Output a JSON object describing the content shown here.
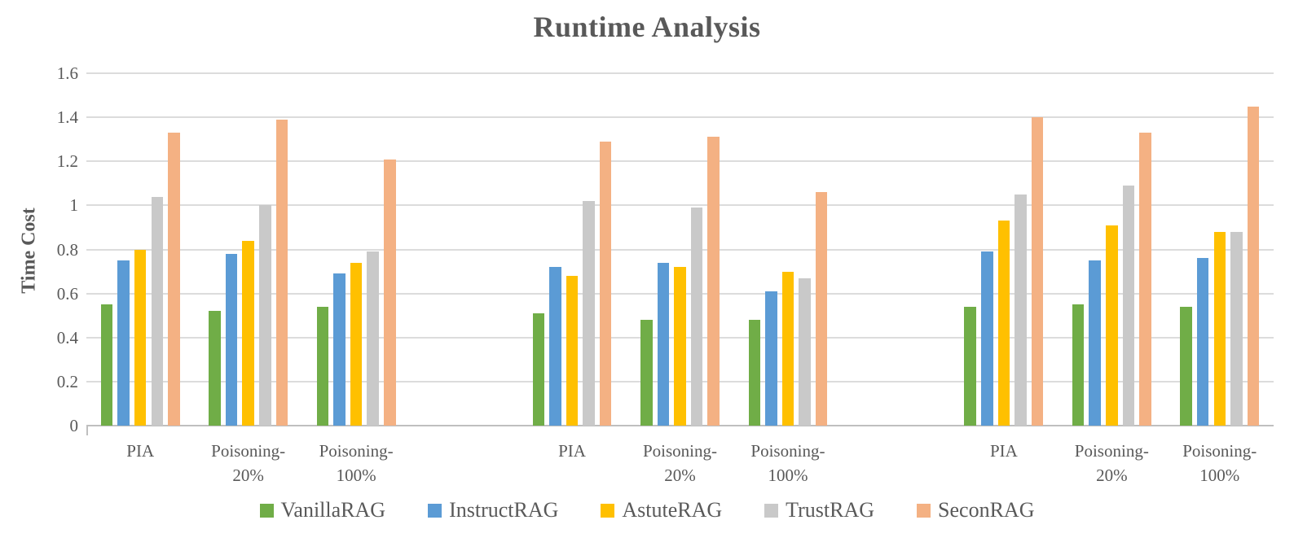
{
  "chart_data": {
    "type": "bar",
    "title": "Runtime Analysis",
    "xlabel": "",
    "ylabel": "Time Cost",
    "ylim": [
      0,
      1.6
    ],
    "ytick_step": 0.2,
    "ytick_labels": [
      "1.6",
      "1.4",
      "1.2",
      "1",
      "0.8",
      "0.6",
      "0.4",
      "0.2",
      "0"
    ],
    "grid": "horizontal-only",
    "legend_position": "bottom",
    "clusters_per_group": 3,
    "group_count": 3,
    "categories": [
      "PIA",
      "Poisoning-\n20%",
      "Poisoning-\n100%",
      "PIA",
      "Poisoning-\n20%",
      "Poisoning-\n100%",
      "PIA",
      "Poisoning-\n20%",
      "Poisoning-\n100%"
    ],
    "series": [
      {
        "name": "VanillaRAG",
        "color": "#70AD47",
        "values": [
          0.55,
          0.52,
          0.54,
          0.51,
          0.48,
          0.48,
          0.54,
          0.55,
          0.54
        ]
      },
      {
        "name": "InstructRAG",
        "color": "#5B9BD5",
        "values": [
          0.75,
          0.78,
          0.69,
          0.72,
          0.74,
          0.61,
          0.79,
          0.75,
          0.76
        ]
      },
      {
        "name": "AstuteRAG",
        "color": "#FFC000",
        "values": [
          0.8,
          0.84,
          0.74,
          0.68,
          0.72,
          0.7,
          0.93,
          0.91,
          0.88
        ]
      },
      {
        "name": "TrustRAG",
        "color": "#C9C9C9",
        "values": [
          1.04,
          1.0,
          0.79,
          1.02,
          0.99,
          0.67,
          1.05,
          1.09,
          0.88
        ]
      },
      {
        "name": "SeconRAG",
        "color": "#F4B183",
        "values": [
          1.33,
          1.39,
          1.21,
          1.29,
          1.31,
          1.06,
          1.4,
          1.33,
          1.45
        ]
      }
    ],
    "colors": {
      "title_text": "#595959",
      "axis_text": "#595959",
      "gridline": "#DCDCDC",
      "axis_line": "#BFBFBF",
      "background": "#FFFFFF"
    }
  }
}
